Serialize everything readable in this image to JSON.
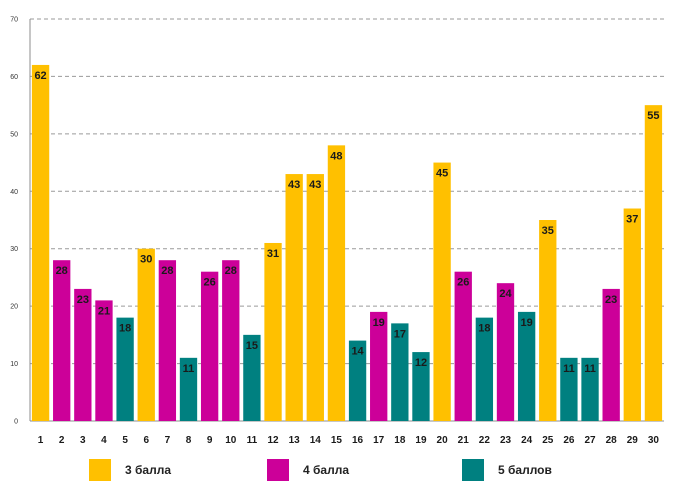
{
  "chart_data": {
    "type": "bar",
    "title": "",
    "xlabel": "",
    "ylabel": "",
    "ylim": [
      0,
      70
    ],
    "yticks": [
      0,
      10,
      20,
      30,
      40,
      50,
      60,
      70
    ],
    "categories": [
      "1",
      "2",
      "3",
      "4",
      "5",
      "6",
      "7",
      "8",
      "9",
      "10",
      "11",
      "12",
      "13",
      "14",
      "15",
      "16",
      "17",
      "18",
      "19",
      "20",
      "21",
      "22",
      "23",
      "24",
      "25",
      "26",
      "27",
      "28",
      "29",
      "30"
    ],
    "values": [
      62,
      28,
      23,
      21,
      18,
      30,
      28,
      11,
      26,
      28,
      15,
      31,
      43,
      43,
      48,
      14,
      19,
      17,
      12,
      45,
      26,
      18,
      24,
      19,
      35,
      11,
      11,
      23,
      37,
      55
    ],
    "groups": [
      0,
      1,
      1,
      1,
      2,
      0,
      1,
      2,
      1,
      1,
      2,
      0,
      0,
      0,
      0,
      2,
      1,
      2,
      2,
      0,
      1,
      2,
      1,
      2,
      0,
      2,
      2,
      1,
      0,
      0
    ],
    "series": [
      {
        "name": "3 балла",
        "color": "#FFC000"
      },
      {
        "name": "4 балла",
        "color": "#CC0099"
      },
      {
        "name": "5 баллов",
        "color": "#008080"
      }
    ],
    "grid": true,
    "legend_position": "bottom"
  }
}
